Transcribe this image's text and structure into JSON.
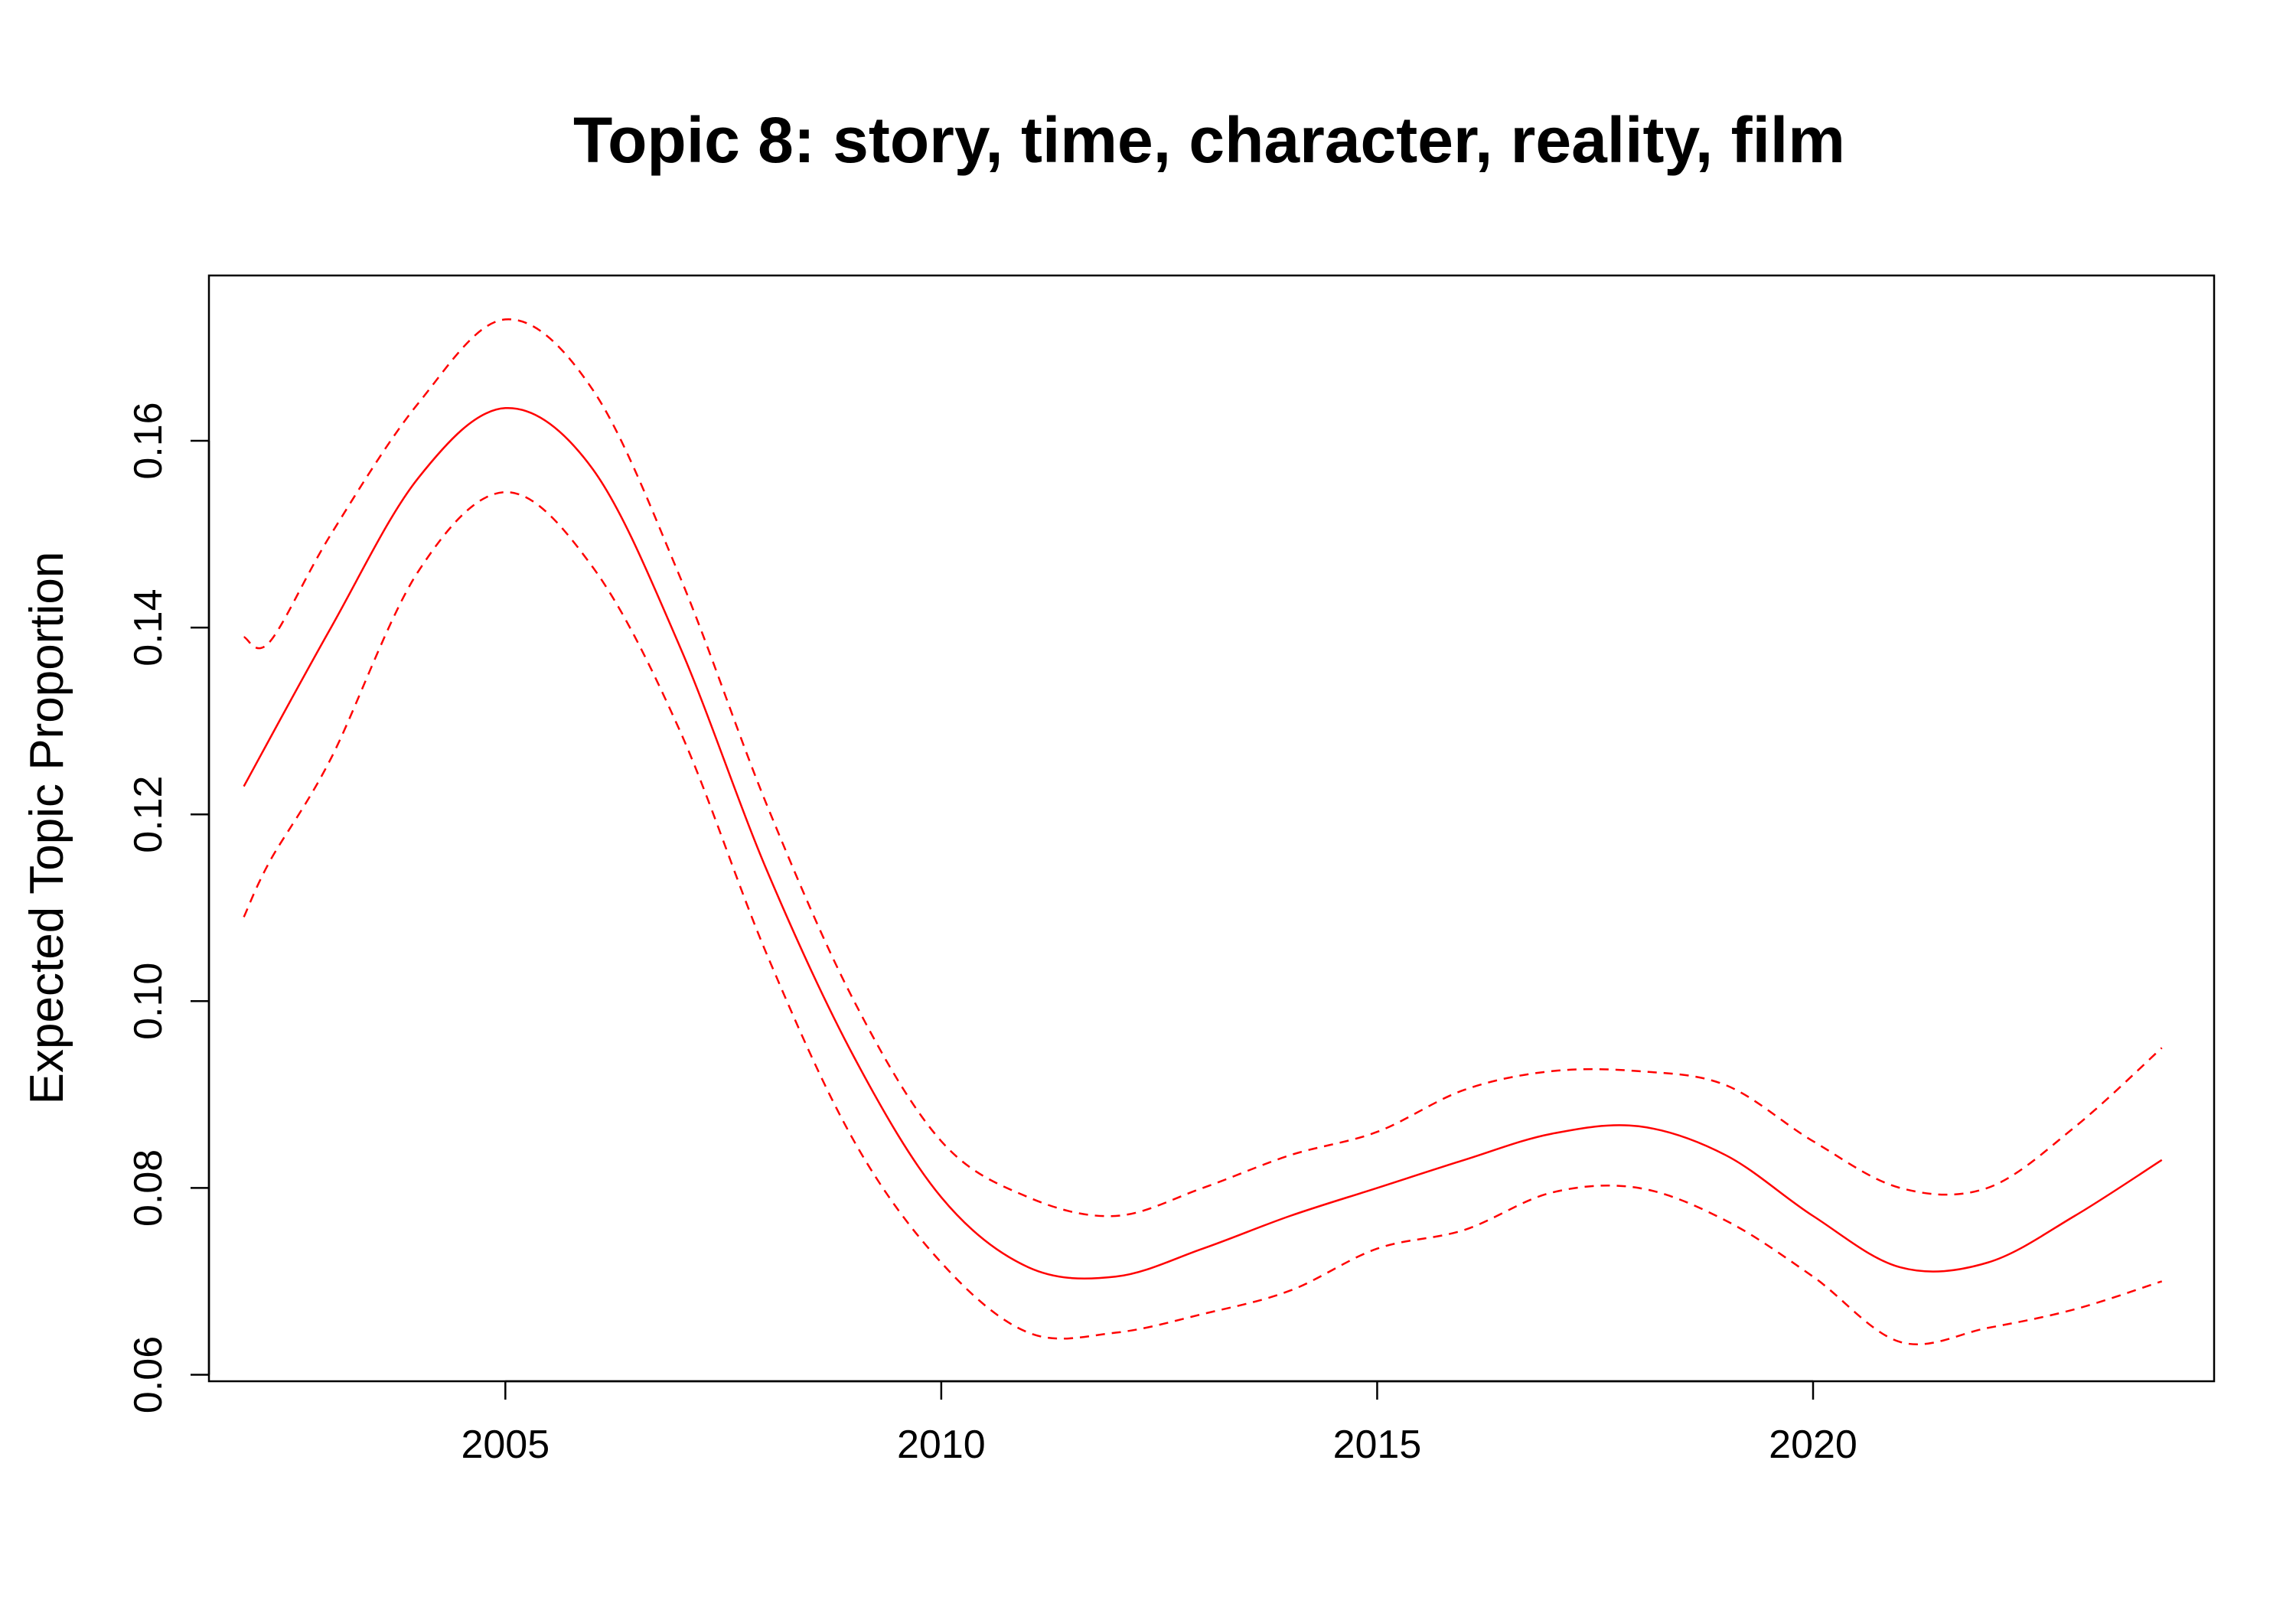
{
  "chart_data": {
    "type": "line",
    "title": "Topic 8: story, time, character, reality, film",
    "xlabel": "",
    "ylabel": "Expected Topic Proportion",
    "xlim": [
      2001.6,
      2024.6
    ],
    "ylim": [
      0.0593,
      0.1777
    ],
    "x_ticks": [
      2005,
      2010,
      2015,
      2020
    ],
    "x_tick_labels": [
      "2005",
      "2010",
      "2015",
      "2020"
    ],
    "y_ticks": [
      0.06,
      0.08,
      0.1,
      0.12,
      0.14,
      0.16
    ],
    "y_tick_labels": [
      "0.06",
      "0.08",
      "0.10",
      "0.12",
      "0.14",
      "0.16"
    ],
    "grid": false,
    "legend": "none",
    "series": [
      {
        "role": "estimate",
        "style": "solid",
        "color": "#ff0000",
        "x": [
          2002,
          2003,
          2004,
          2005,
          2006,
          2007,
          2008,
          2009,
          2010,
          2011,
          2012,
          2013,
          2014,
          2015,
          2016,
          2017,
          2018,
          2019,
          2020,
          2021,
          2022,
          2023,
          2024
        ],
        "y": [
          0.123,
          0.14,
          0.156,
          0.1635,
          0.157,
          0.138,
          0.114,
          0.094,
          0.079,
          0.0715,
          0.0705,
          0.0735,
          0.077,
          0.08,
          0.083,
          0.0858,
          0.0866,
          0.0835,
          0.077,
          0.0715,
          0.072,
          0.077,
          0.083
        ]
      },
      {
        "role": "upper-ci",
        "style": "dashed",
        "color": "#ff0000",
        "x": [
          2002,
          2002.3,
          2003,
          2004,
          2005,
          2006,
          2007,
          2008,
          2009,
          2010,
          2011,
          2012,
          2013,
          2014,
          2015,
          2016,
          2017,
          2018,
          2019,
          2020,
          2021,
          2022,
          2023,
          2024
        ],
        "y": [
          0.139,
          0.1385,
          0.15,
          0.164,
          0.173,
          0.1655,
          0.1455,
          0.121,
          0.1,
          0.085,
          0.079,
          0.077,
          0.08,
          0.0835,
          0.086,
          0.0905,
          0.0925,
          0.0925,
          0.091,
          0.085,
          0.08,
          0.08,
          0.0865,
          0.095
        ]
      },
      {
        "role": "lower-ci",
        "style": "dashed",
        "color": "#ff0000",
        "x": [
          2002,
          2002.3,
          2003,
          2004,
          2005,
          2006,
          2007,
          2008,
          2009,
          2010,
          2011,
          2012,
          2013,
          2014,
          2015,
          2016,
          2017,
          2018,
          2019,
          2020,
          2021,
          2022,
          2023,
          2024
        ],
        "y": [
          0.109,
          0.115,
          0.126,
          0.146,
          0.1545,
          0.1465,
          0.129,
          0.105,
          0.085,
          0.072,
          0.0645,
          0.0645,
          0.0665,
          0.069,
          0.0735,
          0.0755,
          0.0795,
          0.08,
          0.0765,
          0.0705,
          0.0635,
          0.065,
          0.067,
          0.07
        ]
      }
    ]
  }
}
